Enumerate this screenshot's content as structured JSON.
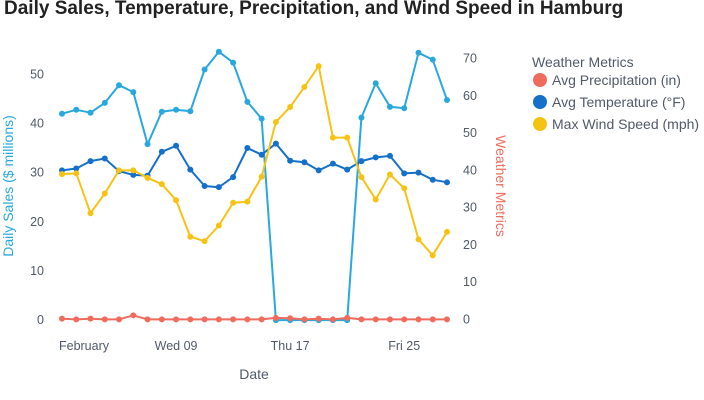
{
  "chart_data": {
    "type": "line",
    "title": "Daily Sales, Temperature, Precipitation, and Wind Speed in Hamburg",
    "xlabel": "Date",
    "ylabel_left": "Daily Sales ($ millions)",
    "ylabel_right": "Weather Metrics",
    "x_ticks": [
      "February",
      "Wed 09",
      "Thu 17",
      "Fri 25"
    ],
    "x": [
      "2022-02-01",
      "2022-02-02",
      "2022-02-03",
      "2022-02-04",
      "2022-02-05",
      "2022-02-06",
      "2022-02-07",
      "2022-02-08",
      "2022-02-09",
      "2022-02-10",
      "2022-02-11",
      "2022-02-12",
      "2022-02-13",
      "2022-02-14",
      "2022-02-15",
      "2022-02-16",
      "2022-02-17",
      "2022-02-18",
      "2022-02-19",
      "2022-02-20",
      "2022-02-21",
      "2022-02-22",
      "2022-02-23",
      "2022-02-24",
      "2022-02-25",
      "2022-02-26",
      "2022-02-27",
      "2022-02-28"
    ],
    "ylim_left": [
      -1,
      57
    ],
    "yticks_left": [
      0,
      10,
      20,
      30,
      40,
      50
    ],
    "ylim_right": [
      -1.5,
      75
    ],
    "yticks_right": [
      0,
      10,
      20,
      30,
      40,
      50,
      60,
      70
    ],
    "grid": false,
    "legend": {
      "title": "Weather Metrics",
      "placement": "right"
    },
    "series": [
      {
        "name": "Daily Sales",
        "axis": "left",
        "color": "#29a8df",
        "legend": false,
        "values": [
          42.0,
          42.8,
          42.2,
          44.2,
          47.8,
          46.4,
          35.8,
          42.4,
          42.8,
          42.5,
          51.0,
          54.6,
          52.4,
          44.4,
          41.0,
          0.0,
          0.0,
          0.0,
          0.0,
          0.0,
          0.0,
          41.2,
          48.2,
          43.4,
          43.1,
          54.4,
          53.0,
          44.8
        ]
      },
      {
        "name": "Avg Precipitation (in)",
        "axis": "right",
        "color": "#ef6b5e",
        "legend": true,
        "values": [
          0.2,
          0.0,
          0.2,
          0.0,
          0.0,
          1.1,
          0.0,
          0.0,
          0.0,
          0.0,
          0.0,
          0.0,
          0.0,
          0.0,
          0.0,
          0.4,
          0.3,
          0.0,
          0.2,
          0.0,
          0.4,
          0.0,
          0.0,
          0.0,
          0.0,
          0.0,
          0.0,
          0.0
        ]
      },
      {
        "name": "Avg Temperature (°F)",
        "axis": "right",
        "color": "#1470c8",
        "legend": true,
        "values": [
          40.0,
          40.5,
          42.5,
          43.2,
          39.8,
          38.8,
          38.6,
          45.0,
          46.6,
          40.2,
          35.8,
          35.5,
          38.2,
          46.0,
          44.2,
          47.2,
          42.6,
          42.2,
          40.0,
          41.8,
          40.2,
          42.5,
          43.5,
          43.9,
          39.2,
          39.4,
          37.5,
          36.8
        ]
      },
      {
        "name": "Max Wind Speed (mph)",
        "axis": "right",
        "color": "#f6c315",
        "legend": true,
        "values": [
          39.0,
          39.2,
          28.5,
          33.8,
          40.0,
          40.0,
          38.0,
          36.3,
          32.0,
          22.2,
          21.0,
          25.2,
          31.3,
          31.6,
          38.3,
          53.0,
          57.0,
          62.4,
          68.0,
          48.8,
          48.8,
          38.2,
          32.2,
          38.9,
          35.2,
          21.5,
          17.2,
          23.5
        ]
      }
    ]
  }
}
